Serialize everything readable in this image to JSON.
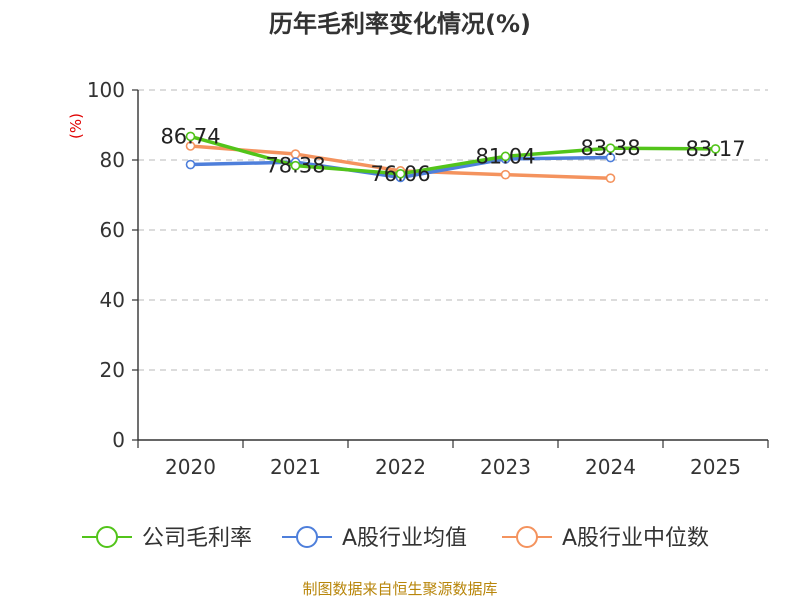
{
  "chart_data": {
    "type": "line",
    "title": "历年毛利率变化情况(%)",
    "ylabel": "(%)",
    "categories": [
      "2020",
      "2021",
      "2022",
      "2023",
      "2024",
      "2025"
    ],
    "ylim": [
      0,
      100
    ],
    "yticks": [
      0,
      20,
      40,
      60,
      80,
      100
    ],
    "grid": "horizontal-dashed",
    "legend_position": "bottom",
    "series": [
      {
        "name": "公司毛利率",
        "color": "#52c41a",
        "values": [
          86.74,
          78.38,
          76.06,
          81.04,
          83.38,
          83.17
        ],
        "labels": [
          "86.74",
          "78.38",
          "76.06",
          "81.04",
          "83.38",
          "83.17"
        ]
      },
      {
        "name": "A股行业均值",
        "color": "#4e7fdb",
        "values": [
          78.7,
          79.4,
          75.0,
          80.3,
          80.7,
          null
        ]
      },
      {
        "name": "A股行业中位数",
        "color": "#f4935e",
        "values": [
          84.0,
          81.7,
          76.9,
          75.8,
          74.8,
          null
        ]
      }
    ]
  },
  "title_color": "#333333",
  "ylabel_color": "#e00000",
  "footer": {
    "text": "制图数据来自恒生聚源数据库",
    "color": "#b8860b"
  }
}
